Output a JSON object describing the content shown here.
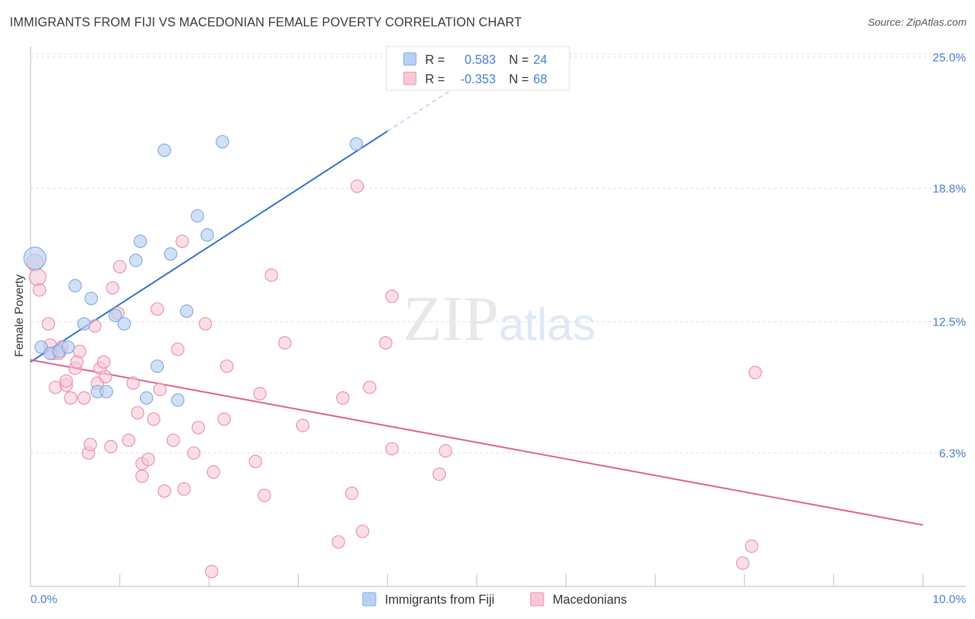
{
  "chart_data": {
    "type": "scatter",
    "title": "IMMIGRANTS FROM FIJI VS MACEDONIAN FEMALE POVERTY CORRELATION CHART",
    "source": "Source: ZipAtlas.com",
    "xlabel": "",
    "ylabel": "Female Poverty",
    "xlim": [
      0,
      10
    ],
    "ylim": [
      0,
      25.5
    ],
    "x_tick_labels": [
      "0.0%",
      "10.0%"
    ],
    "y_ticks": [
      6.3,
      12.5,
      18.8,
      25.0
    ],
    "y_tick_labels": [
      "6.3%",
      "12.5%",
      "18.8%",
      "25.0%"
    ],
    "grid": true,
    "watermark": "ZIPatlas",
    "legend": {
      "placement": "top-center",
      "r_label": "R =",
      "n_label": "N =",
      "entries": [
        {
          "r": "0.583",
          "n": "24"
        },
        {
          "r": "-0.353",
          "n": "68"
        }
      ]
    },
    "bottom_legend": [
      "Immigrants from Fiji",
      "Macedonians"
    ],
    "colors": {
      "fiji_fill": "#b8d0f3",
      "fiji_stroke": "#7ea6e0",
      "fiji_line": "#2f73cc",
      "mac_fill": "#f8c8d6",
      "mac_stroke": "#e88ca8",
      "mac_line": "#e06090",
      "axis_text": "#4a7fd0"
    },
    "series": [
      {
        "name": "Immigrants from Fiji",
        "trend": {
          "x0": 0.0,
          "y0": 10.6,
          "x1": 4.0,
          "y1": 21.5,
          "dash_x_end": 5.0
        },
        "points": [
          [
            0.05,
            15.5
          ],
          [
            0.12,
            11.3
          ],
          [
            0.22,
            11.0
          ],
          [
            0.32,
            11.1
          ],
          [
            0.42,
            11.3
          ],
          [
            0.5,
            14.2
          ],
          [
            0.6,
            12.4
          ],
          [
            0.68,
            13.6
          ],
          [
            0.75,
            9.2
          ],
          [
            0.85,
            9.2
          ],
          [
            0.95,
            12.8
          ],
          [
            1.05,
            12.4
          ],
          [
            1.18,
            15.4
          ],
          [
            1.23,
            16.3
          ],
          [
            1.3,
            8.9
          ],
          [
            1.42,
            10.4
          ],
          [
            1.5,
            20.6
          ],
          [
            1.57,
            15.7
          ],
          [
            1.65,
            8.8
          ],
          [
            1.75,
            13.0
          ],
          [
            1.87,
            17.5
          ],
          [
            1.98,
            16.6
          ],
          [
            2.15,
            21.0
          ],
          [
            3.65,
            20.9
          ]
        ]
      },
      {
        "name": "Macedonians",
        "trend": {
          "x0": 0.0,
          "y0": 10.7,
          "x1": 10.0,
          "y1": 2.9
        },
        "points": [
          [
            0.05,
            15.3
          ],
          [
            0.08,
            14.6
          ],
          [
            0.1,
            14.0
          ],
          [
            0.2,
            12.4
          ],
          [
            0.22,
            11.4
          ],
          [
            0.25,
            11.0
          ],
          [
            0.28,
            9.4
          ],
          [
            0.35,
            11.3
          ],
          [
            0.4,
            9.5
          ],
          [
            0.4,
            9.7
          ],
          [
            0.45,
            8.9
          ],
          [
            0.5,
            10.3
          ],
          [
            0.52,
            10.6
          ],
          [
            0.55,
            11.1
          ],
          [
            0.6,
            8.9
          ],
          [
            0.65,
            6.3
          ],
          [
            0.67,
            6.7
          ],
          [
            0.72,
            12.3
          ],
          [
            0.75,
            9.6
          ],
          [
            0.78,
            10.3
          ],
          [
            0.82,
            10.6
          ],
          [
            0.84,
            9.9
          ],
          [
            0.9,
            6.6
          ],
          [
            0.92,
            14.1
          ],
          [
            0.98,
            12.9
          ],
          [
            1.0,
            15.1
          ],
          [
            1.1,
            6.9
          ],
          [
            1.15,
            9.6
          ],
          [
            1.2,
            8.2
          ],
          [
            1.25,
            5.8
          ],
          [
            1.25,
            5.2
          ],
          [
            1.32,
            6.0
          ],
          [
            1.38,
            7.9
          ],
          [
            1.42,
            13.1
          ],
          [
            1.45,
            9.3
          ],
          [
            1.5,
            4.5
          ],
          [
            1.6,
            6.9
          ],
          [
            1.65,
            11.2
          ],
          [
            1.7,
            16.3
          ],
          [
            1.72,
            4.6
          ],
          [
            1.83,
            6.3
          ],
          [
            1.88,
            7.5
          ],
          [
            1.96,
            12.4
          ],
          [
            2.03,
            0.7
          ],
          [
            2.05,
            5.4
          ],
          [
            2.17,
            7.9
          ],
          [
            2.2,
            10.4
          ],
          [
            2.52,
            5.9
          ],
          [
            2.57,
            9.1
          ],
          [
            2.62,
            4.3
          ],
          [
            2.7,
            14.7
          ],
          [
            2.85,
            11.5
          ],
          [
            3.05,
            7.6
          ],
          [
            3.45,
            2.1
          ],
          [
            3.5,
            8.9
          ],
          [
            3.6,
            4.4
          ],
          [
            3.66,
            18.9
          ],
          [
            3.72,
            2.6
          ],
          [
            3.8,
            9.4
          ],
          [
            3.98,
            11.5
          ],
          [
            4.05,
            13.7
          ],
          [
            4.05,
            6.5
          ],
          [
            4.58,
            5.3
          ],
          [
            4.65,
            6.4
          ],
          [
            7.98,
            1.1
          ],
          [
            8.08,
            1.9
          ],
          [
            8.12,
            10.1
          ],
          [
            0.32,
            11.0
          ]
        ]
      }
    ]
  }
}
